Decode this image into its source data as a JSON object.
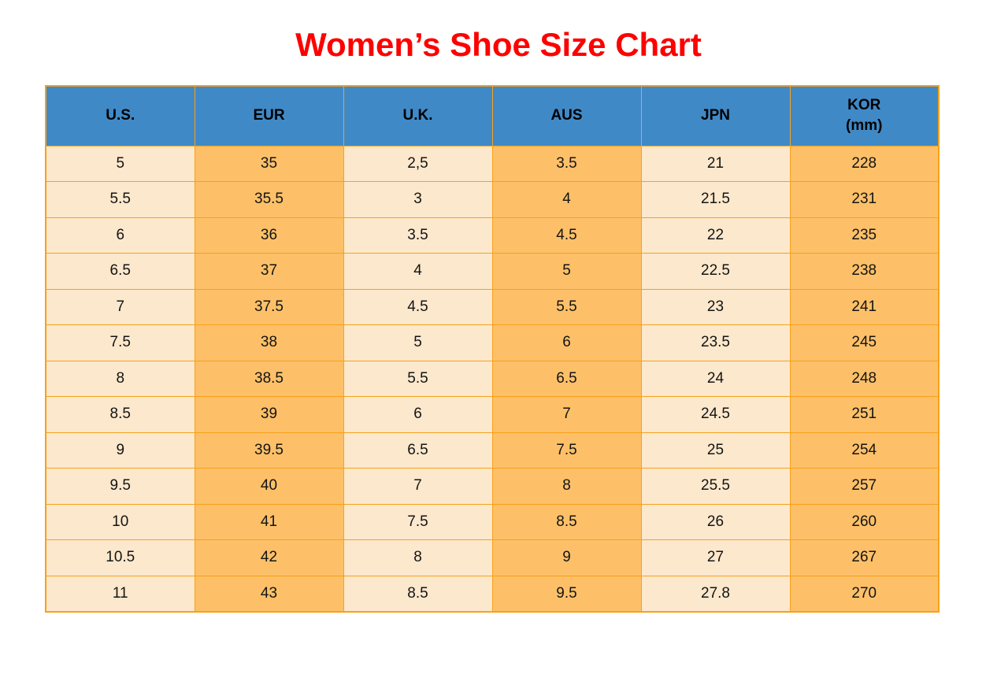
{
  "title": "Women’s Shoe Size Chart",
  "colors": {
    "title": "#FE0000",
    "header_bg": "#4089C7",
    "header_text": "#000000",
    "cell_light": "#FCE8CC",
    "cell_orange": "#FDC068",
    "border": "#F7A11A",
    "cell_text": "#141414"
  },
  "chart_data": {
    "type": "table",
    "title": "Women’s Shoe Size Chart",
    "columns": [
      {
        "label": "U.S.",
        "sub": ""
      },
      {
        "label": "EUR",
        "sub": ""
      },
      {
        "label": "U.K.",
        "sub": ""
      },
      {
        "label": "AUS",
        "sub": ""
      },
      {
        "label": "JPN",
        "sub": ""
      },
      {
        "label": "KOR",
        "sub": "(mm)"
      }
    ],
    "rows": [
      [
        "5",
        "35",
        "2,5",
        "3.5",
        "21",
        "228"
      ],
      [
        "5.5",
        "35.5",
        "3",
        "4",
        "21.5",
        "231"
      ],
      [
        "6",
        "36",
        "3.5",
        "4.5",
        "22",
        "235"
      ],
      [
        "6.5",
        "37",
        "4",
        "5",
        "22.5",
        "238"
      ],
      [
        "7",
        "37.5",
        "4.5",
        "5.5",
        "23",
        "241"
      ],
      [
        "7.5",
        "38",
        "5",
        "6",
        "23.5",
        "245"
      ],
      [
        "8",
        "38.5",
        "5.5",
        "6.5",
        "24",
        "248"
      ],
      [
        "8.5",
        "39",
        "6",
        "7",
        "24.5",
        "251"
      ],
      [
        "9",
        "39.5",
        "6.5",
        "7.5",
        "25",
        "254"
      ],
      [
        "9.5",
        "40",
        "7",
        "8",
        "25.5",
        "257"
      ],
      [
        "10",
        "41",
        "7.5",
        "8.5",
        "26",
        "260"
      ],
      [
        "10.5",
        "42",
        "8",
        "9",
        "27",
        "267"
      ],
      [
        "11",
        "43",
        "8.5",
        "9.5",
        "27.8",
        "270"
      ]
    ]
  }
}
